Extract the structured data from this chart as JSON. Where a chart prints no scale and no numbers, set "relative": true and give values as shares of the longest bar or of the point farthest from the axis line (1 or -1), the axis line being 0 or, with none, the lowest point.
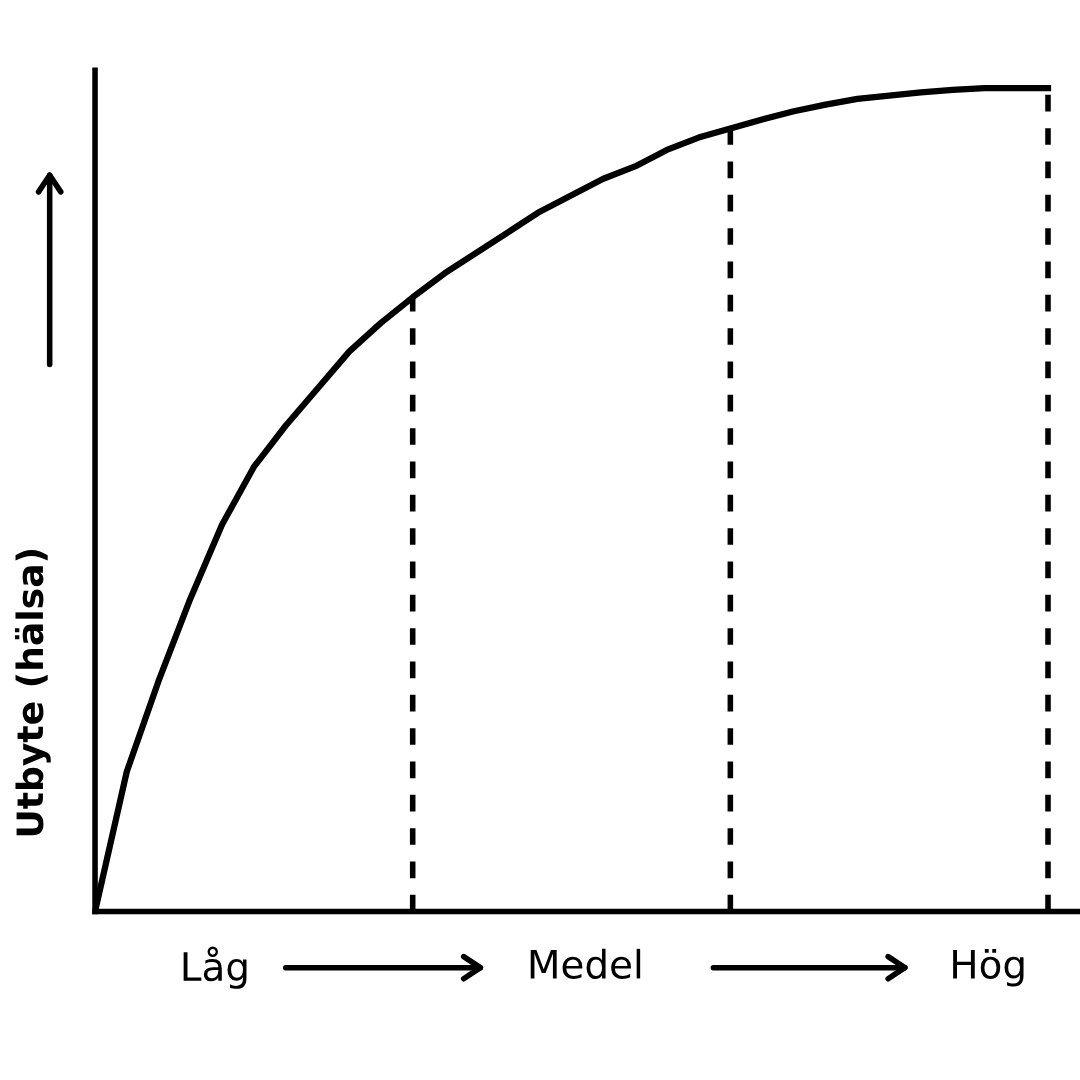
{
  "chart_data": {
    "type": "line",
    "relative": true,
    "ylabel": "Utbyte (hälsa)",
    "categories": [
      null,
      null,
      null,
      null,
      null,
      null,
      null,
      null,
      null,
      null,
      null,
      null,
      null,
      null,
      null,
      null,
      null,
      null,
      null,
      null,
      null,
      null,
      null,
      null,
      null,
      null,
      null,
      null,
      null,
      null,
      null
    ],
    "series": [
      {
        "color": "#000000",
        "values": [
          0,
          0.17,
          0.28,
          0.38,
          0.47,
          0.54,
          0.59,
          0.635,
          0.68,
          0.715,
          0.746,
          0.775,
          0.8,
          0.825,
          0.85,
          0.87,
          0.89,
          0.905,
          0.925,
          0.94,
          0.951,
          0.962,
          0.972,
          0.98,
          0.987,
          0.991,
          0.995,
          0.998,
          1,
          1,
          1
        ]
      }
    ],
    "annotations": [
      "Låg",
      "Medel",
      "Hög"
    ],
    "grid": "x",
    "marker": "none",
    "line_style": "solid"
  }
}
